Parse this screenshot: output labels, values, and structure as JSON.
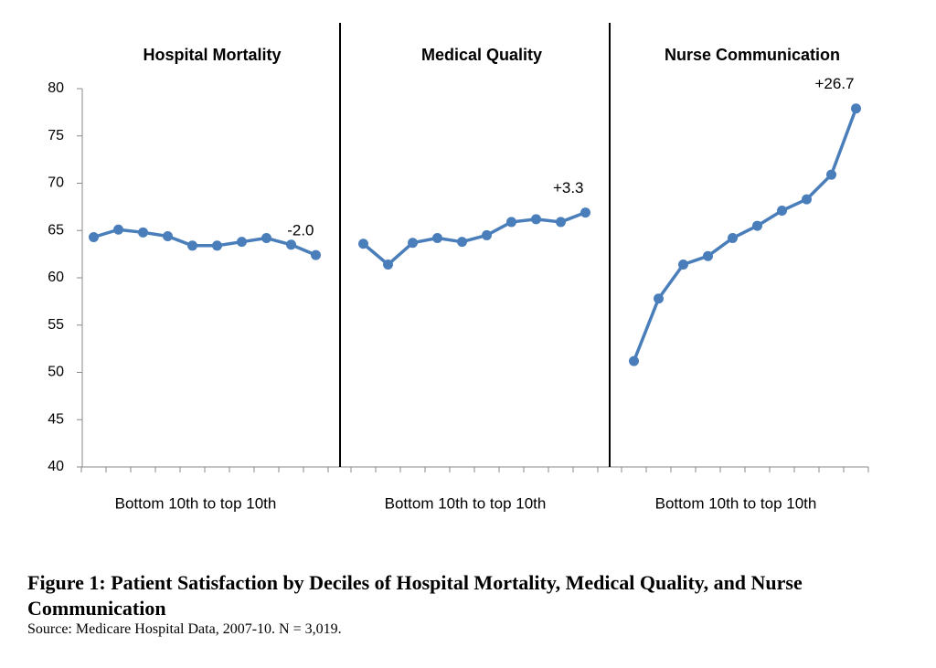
{
  "chart_data": [
    {
      "type": "line",
      "title": "Hospital Mortality",
      "categories": [
        null,
        null,
        null,
        null,
        null,
        null,
        null,
        null,
        null,
        null
      ],
      "values": [
        64.3,
        65.1,
        64.8,
        64.4,
        63.4,
        63.4,
        63.8,
        64.2,
        63.5,
        62.4
      ],
      "color": "#4a7ebb",
      "ylim": [
        40,
        80
      ],
      "yticks": [
        40,
        45,
        50,
        55,
        60,
        65,
        70,
        75,
        80
      ],
      "xlabel": "Bottom 10th to top 10th",
      "annotation": "-2.0"
    },
    {
      "type": "line",
      "title": "Medical Quality",
      "categories": [
        null,
        null,
        null,
        null,
        null,
        null,
        null,
        null,
        null,
        null
      ],
      "values": [
        63.6,
        61.4,
        63.7,
        64.2,
        63.8,
        64.5,
        65.9,
        66.2,
        65.9,
        66.9
      ],
      "color": "#4a7ebb",
      "ylim": [
        40,
        80
      ],
      "xlabel": "Bottom 10th to top 10th",
      "annotation": "+3.3"
    },
    {
      "type": "line",
      "title": "Nurse Communication",
      "categories": [
        null,
        null,
        null,
        null,
        null,
        null,
        null,
        null,
        null,
        null
      ],
      "values": [
        51.2,
        57.8,
        61.4,
        62.3,
        64.2,
        65.5,
        67.1,
        68.3,
        70.9,
        77.9
      ],
      "color": "#4a7ebb",
      "ylim": [
        40,
        80
      ],
      "xlabel": "Bottom 10th to top 10th",
      "annotation": "+26.7"
    }
  ],
  "caption": {
    "title": "Figure 1: Patient Satisfaction by Deciles of Hospital Mortality, Medical Quality, and Nurse Communication",
    "source": "Source: Medicare Hospital Data, 2007-10. N = 3,019."
  }
}
